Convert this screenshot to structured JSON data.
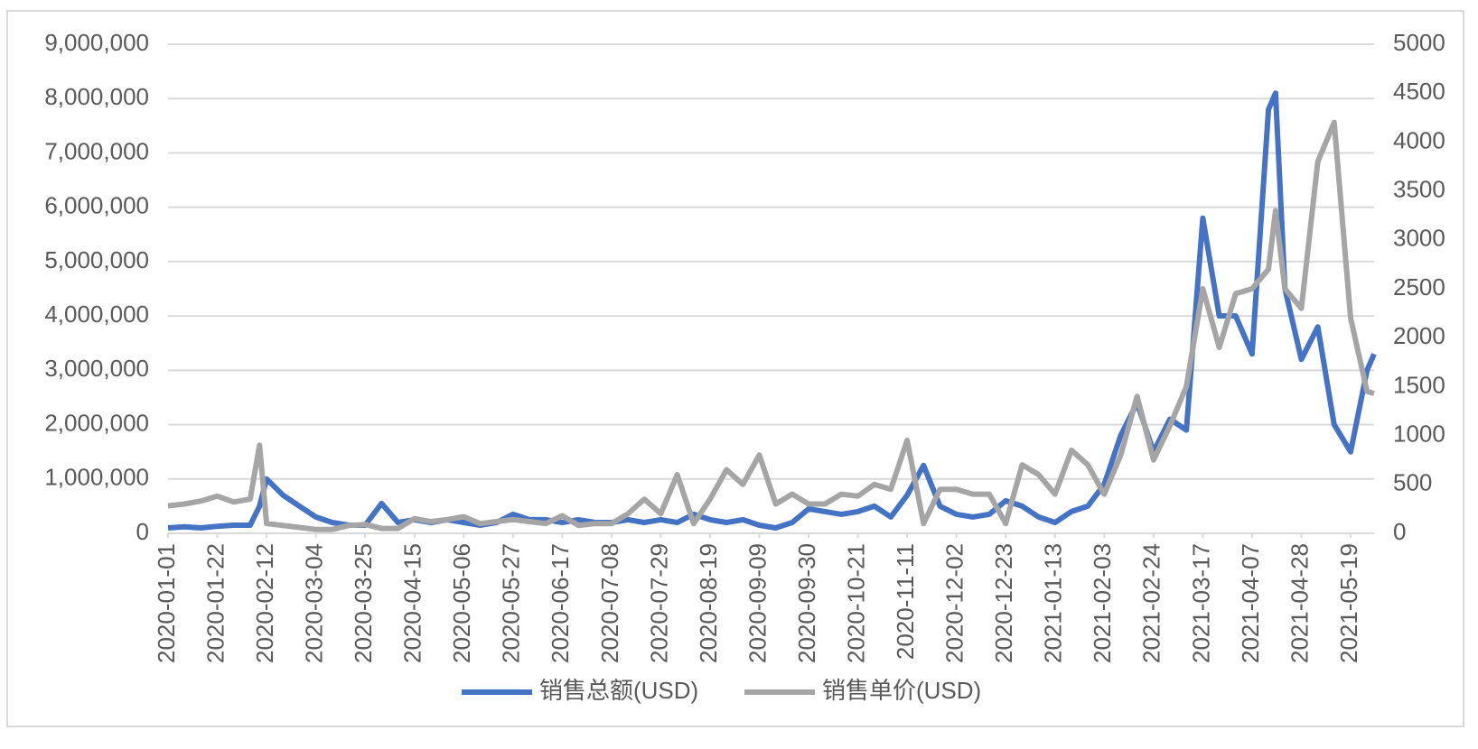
{
  "chart_data": {
    "type": "line",
    "x": [
      "2020-01-01",
      "2020-01-08",
      "2020-01-15",
      "2020-01-22",
      "2020-01-29",
      "2020-02-05",
      "2020-02-09",
      "2020-02-12",
      "2020-02-19",
      "2020-02-26",
      "2020-03-04",
      "2020-03-11",
      "2020-03-18",
      "2020-03-25",
      "2020-04-01",
      "2020-04-08",
      "2020-04-15",
      "2020-04-22",
      "2020-04-29",
      "2020-05-06",
      "2020-05-13",
      "2020-05-20",
      "2020-05-27",
      "2020-06-03",
      "2020-06-10",
      "2020-06-17",
      "2020-06-24",
      "2020-07-01",
      "2020-07-08",
      "2020-07-15",
      "2020-07-22",
      "2020-07-29",
      "2020-08-05",
      "2020-08-12",
      "2020-08-19",
      "2020-08-26",
      "2020-09-02",
      "2020-09-09",
      "2020-09-16",
      "2020-09-23",
      "2020-09-30",
      "2020-10-07",
      "2020-10-14",
      "2020-10-21",
      "2020-10-28",
      "2020-11-04",
      "2020-11-11",
      "2020-11-18",
      "2020-11-25",
      "2020-12-02",
      "2020-12-09",
      "2020-12-16",
      "2020-12-23",
      "2020-12-30",
      "2021-01-06",
      "2021-01-13",
      "2021-01-20",
      "2021-01-27",
      "2021-02-03",
      "2021-02-10",
      "2021-02-17",
      "2021-02-24",
      "2021-03-03",
      "2021-03-10",
      "2021-03-17",
      "2021-03-24",
      "2021-03-31",
      "2021-04-07",
      "2021-04-14",
      "2021-04-17",
      "2021-04-21",
      "2021-04-28",
      "2021-05-05",
      "2021-05-12",
      "2021-05-19",
      "2021-05-26",
      "2021-05-29"
    ],
    "series": [
      {
        "name": "销售总额(USD)",
        "color": "#4472c4",
        "axis": "y",
        "values": [
          100000,
          120000,
          100000,
          130000,
          150000,
          150000,
          500000,
          1000000,
          700000,
          500000,
          300000,
          200000,
          150000,
          150000,
          550000,
          200000,
          250000,
          200000,
          250000,
          200000,
          150000,
          200000,
          350000,
          250000,
          250000,
          200000,
          250000,
          200000,
          200000,
          250000,
          200000,
          250000,
          200000,
          350000,
          250000,
          200000,
          250000,
          150000,
          100000,
          200000,
          450000,
          400000,
          350000,
          400000,
          500000,
          300000,
          700000,
          1250000,
          500000,
          350000,
          300000,
          350000,
          600000,
          500000,
          300000,
          200000,
          400000,
          500000,
          900000,
          1800000,
          2400000,
          1500000,
          2100000,
          1900000,
          5800000,
          4000000,
          4000000,
          3300000,
          7800000,
          8100000,
          4500000,
          3200000,
          3800000,
          2000000,
          1500000,
          3000000,
          3300000
        ]
      },
      {
        "name": "销售单价(USD)",
        "color": "#a5a5a5",
        "axis": "y2",
        "values": [
          280,
          300,
          330,
          380,
          320,
          350,
          900,
          100,
          80,
          60,
          40,
          40,
          80,
          90,
          50,
          50,
          150,
          120,
          140,
          170,
          100,
          120,
          140,
          120,
          100,
          180,
          80,
          100,
          100,
          200,
          350,
          200,
          600,
          100,
          350,
          650,
          500,
          800,
          300,
          400,
          300,
          300,
          400,
          380,
          500,
          450,
          950,
          100,
          450,
          450,
          400,
          400,
          100,
          700,
          600,
          400,
          850,
          700,
          400,
          800,
          1400,
          750,
          1100,
          1500,
          2500,
          1900,
          2450,
          2500,
          2700,
          3300,
          2500,
          2300,
          3800,
          4200,
          2200,
          1450,
          1430
        ]
      }
    ],
    "xticks": [
      "2020-01-01",
      "2020-01-22",
      "2020-02-12",
      "2020-03-04",
      "2020-03-25",
      "2020-04-15",
      "2020-05-06",
      "2020-05-27",
      "2020-06-17",
      "2020-07-08",
      "2020-07-29",
      "2020-08-19",
      "2020-09-09",
      "2020-09-30",
      "2020-10-21",
      "2020-11-11",
      "2020-12-02",
      "2020-12-23",
      "2021-01-13",
      "2021-02-03",
      "2021-02-24",
      "2021-03-17",
      "2021-04-07",
      "2021-04-28",
      "2021-05-19"
    ],
    "ylim": [
      0,
      9000000
    ],
    "yticks": [
      0,
      {
        "value": 1000000,
        "label": "1,000,000"
      },
      {
        "value": 2000000,
        "label": "2,000,000"
      },
      {
        "value": 3000000,
        "label": "3,000,000"
      },
      {
        "value": 4000000,
        "label": "4,000,000"
      },
      {
        "value": 5000000,
        "label": "5,000,000"
      },
      {
        "value": 6000000,
        "label": "6,000,000"
      },
      {
        "value": 7000000,
        "label": "7,000,000"
      },
      {
        "value": 8000000,
        "label": "8,000,000"
      },
      {
        "value": 9000000,
        "label": "9,000,000"
      }
    ],
    "y2lim": [
      0,
      5000
    ],
    "y2ticks": [
      0,
      500,
      1000,
      1500,
      2000,
      2500,
      3000,
      3500,
      4000,
      4500,
      5000
    ],
    "grid": true,
    "legend": "bottom"
  }
}
